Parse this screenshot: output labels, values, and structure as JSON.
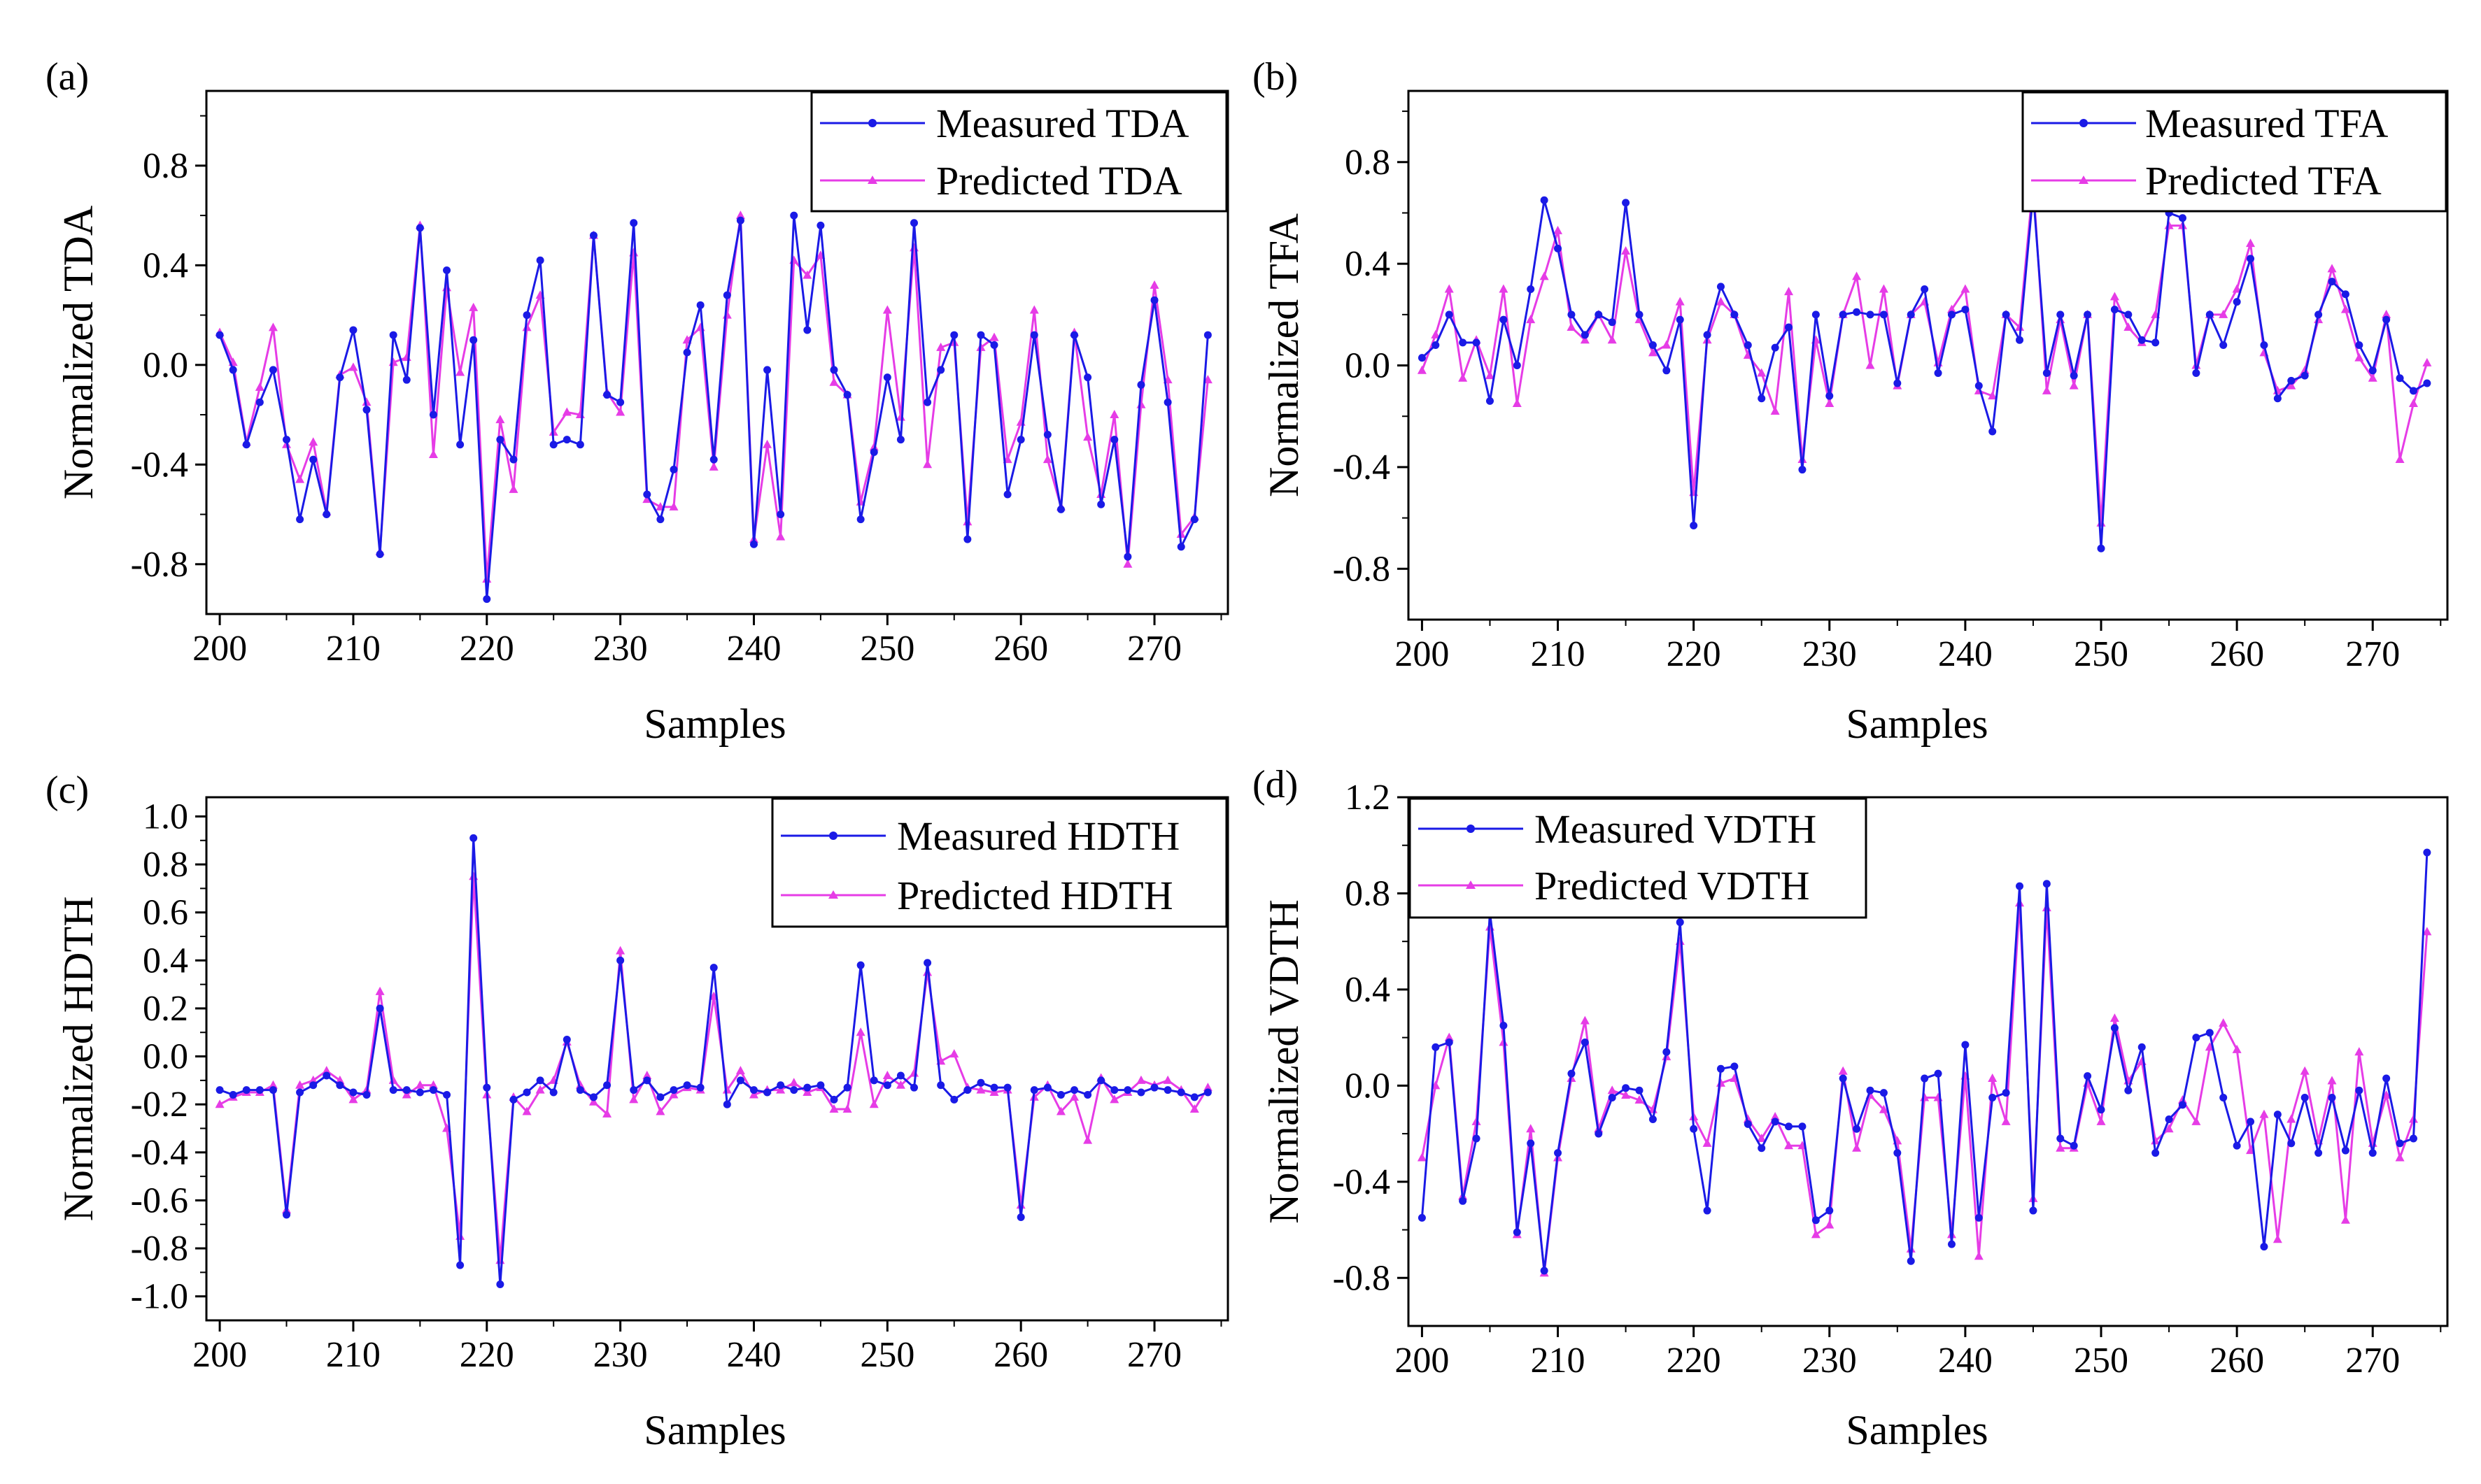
{
  "figure": {
    "series_colors": {
      "measured": "#1a1ae6",
      "predicted": "#e63ce6"
    }
  },
  "chart_data": [
    {
      "type": "line",
      "panel_label": "(a)",
      "title": "",
      "xlabel": "Samples",
      "ylabel": "Normalized TDA",
      "xlim": [
        199,
        275.5
      ],
      "ylim": [
        -1.0,
        1.1
      ],
      "xticks": [
        200,
        210,
        220,
        230,
        240,
        250,
        260,
        270
      ],
      "yticks": [
        -0.8,
        -0.4,
        0.0,
        0.4,
        0.8
      ],
      "ytick_labels": [
        "-0.8",
        "-0.4",
        "0.0",
        "0.4",
        "0.8"
      ],
      "legend": "top-right",
      "x": [
        200,
        201,
        202,
        203,
        204,
        205,
        206,
        207,
        208,
        209,
        210,
        211,
        212,
        213,
        214,
        215,
        216,
        217,
        218,
        219,
        220,
        221,
        222,
        223,
        224,
        225,
        226,
        227,
        228,
        229,
        230,
        231,
        232,
        233,
        234,
        235,
        236,
        237,
        238,
        239,
        240,
        241,
        242,
        243,
        244,
        245,
        246,
        247,
        248,
        249,
        250,
        251,
        252,
        253,
        254,
        255,
        256,
        257,
        258,
        259,
        260,
        261,
        262,
        263,
        264,
        265,
        266,
        267,
        268,
        269,
        270,
        271,
        272,
        273,
        274
      ],
      "series": [
        {
          "name": "Measured TDA",
          "marker": "circle",
          "values": [
            0.12,
            -0.02,
            -0.32,
            -0.15,
            -0.02,
            -0.3,
            -0.62,
            -0.38,
            -0.6,
            -0.05,
            0.14,
            -0.18,
            -0.76,
            0.12,
            -0.06,
            0.55,
            -0.2,
            0.38,
            -0.32,
            0.1,
            -0.94,
            -0.3,
            -0.38,
            0.2,
            0.42,
            -0.32,
            -0.3,
            -0.32,
            0.52,
            -0.12,
            -0.15,
            0.57,
            -0.52,
            -0.62,
            -0.42,
            0.05,
            0.24,
            -0.38,
            0.28,
            0.58,
            -0.72,
            -0.02,
            -0.6,
            0.6,
            0.14,
            0.56,
            -0.02,
            -0.12,
            -0.62,
            -0.35,
            -0.05,
            -0.3,
            0.57,
            -0.15,
            -0.02,
            0.12,
            -0.7,
            0.12,
            0.08,
            -0.52,
            -0.3,
            0.12,
            -0.28,
            -0.58,
            0.12,
            -0.05,
            -0.56,
            -0.3,
            -0.77,
            -0.08,
            0.26,
            -0.15,
            -0.73,
            -0.62,
            0.12
          ]
        },
        {
          "name": "Predicted TDA",
          "marker": "triangle",
          "values": [
            0.13,
            0.01,
            -0.31,
            -0.09,
            0.15,
            -0.32,
            -0.46,
            -0.31,
            -0.59,
            -0.04,
            -0.01,
            -0.15,
            -0.75,
            0.01,
            0.03,
            0.56,
            -0.36,
            0.31,
            -0.03,
            0.23,
            -0.86,
            -0.22,
            -0.5,
            0.15,
            0.28,
            -0.27,
            -0.19,
            -0.2,
            0.52,
            -0.11,
            -0.19,
            0.45,
            -0.54,
            -0.57,
            -0.57,
            0.1,
            0.15,
            -0.41,
            0.2,
            0.6,
            -0.7,
            -0.32,
            -0.69,
            0.42,
            0.36,
            0.44,
            -0.07,
            -0.12,
            -0.55,
            -0.33,
            0.22,
            -0.21,
            0.47,
            -0.4,
            0.07,
            0.09,
            -0.63,
            0.07,
            0.11,
            -0.38,
            -0.23,
            0.22,
            -0.38,
            -0.57,
            0.13,
            -0.29,
            -0.52,
            -0.2,
            -0.8,
            -0.16,
            0.32,
            -0.06,
            -0.68,
            -0.61,
            -0.06
          ]
        }
      ]
    },
    {
      "type": "line",
      "panel_label": "(b)",
      "title": "",
      "xlabel": "Samples",
      "ylabel": "Normalized TFA",
      "xlim": [
        199,
        275.5
      ],
      "ylim": [
        -1.0,
        1.08
      ],
      "xticks": [
        200,
        210,
        220,
        230,
        240,
        250,
        260,
        270
      ],
      "yticks": [
        -0.8,
        -0.4,
        0.0,
        0.4,
        0.8
      ],
      "ytick_labels": [
        "-0.8",
        "-0.4",
        "0.0",
        "0.4",
        "0.8"
      ],
      "legend": "top-right",
      "x": [
        200,
        201,
        202,
        203,
        204,
        205,
        206,
        207,
        208,
        209,
        210,
        211,
        212,
        213,
        214,
        215,
        216,
        217,
        218,
        219,
        220,
        221,
        222,
        223,
        224,
        225,
        226,
        227,
        228,
        229,
        230,
        231,
        232,
        233,
        234,
        235,
        236,
        237,
        238,
        239,
        240,
        241,
        242,
        243,
        244,
        245,
        246,
        247,
        248,
        249,
        250,
        251,
        252,
        253,
        254,
        255,
        256,
        257,
        258,
        259,
        260,
        261,
        262,
        263,
        264,
        265,
        266,
        267,
        268,
        269,
        270,
        271,
        272,
        273,
        274
      ],
      "series": [
        {
          "name": "Measured TFA",
          "marker": "circle",
          "values": [
            0.03,
            0.08,
            0.2,
            0.09,
            0.09,
            -0.14,
            0.18,
            0.0,
            0.3,
            0.65,
            0.46,
            0.2,
            0.12,
            0.2,
            0.17,
            0.64,
            0.2,
            0.08,
            -0.02,
            0.18,
            -0.63,
            0.12,
            0.31,
            0.2,
            0.08,
            -0.13,
            0.07,
            0.15,
            -0.41,
            0.2,
            -0.12,
            0.2,
            0.21,
            0.2,
            0.2,
            -0.07,
            0.2,
            0.3,
            -0.03,
            0.2,
            0.22,
            -0.08,
            -0.26,
            0.2,
            0.1,
            0.68,
            -0.03,
            0.2,
            -0.04,
            0.2,
            -0.72,
            0.22,
            0.2,
            0.1,
            0.09,
            0.6,
            0.58,
            -0.03,
            0.2,
            0.08,
            0.25,
            0.42,
            0.08,
            -0.13,
            -0.06,
            -0.04,
            0.2,
            0.33,
            0.28,
            0.08,
            -0.02,
            0.18,
            -0.05,
            -0.1,
            -0.07
          ]
        },
        {
          "name": "Predicted TFA",
          "marker": "triangle",
          "values": [
            -0.02,
            0.12,
            0.3,
            -0.05,
            0.1,
            -0.04,
            0.3,
            -0.15,
            0.18,
            0.35,
            0.53,
            0.15,
            0.1,
            0.2,
            0.1,
            0.45,
            0.18,
            0.05,
            0.08,
            0.25,
            -0.5,
            0.1,
            0.25,
            0.2,
            0.04,
            -0.03,
            -0.18,
            0.29,
            -0.37,
            0.1,
            -0.15,
            0.2,
            0.35,
            0.0,
            0.3,
            -0.08,
            0.2,
            0.25,
            0.01,
            0.22,
            0.3,
            -0.1,
            -0.12,
            0.2,
            0.15,
            0.72,
            -0.1,
            0.18,
            -0.08,
            0.2,
            -0.62,
            0.27,
            0.15,
            0.09,
            0.2,
            0.55,
            0.55,
            0.0,
            0.2,
            0.2,
            0.3,
            0.48,
            0.05,
            -0.1,
            -0.08,
            -0.02,
            0.18,
            0.38,
            0.22,
            0.03,
            -0.05,
            0.2,
            -0.37,
            -0.15,
            0.01
          ]
        }
      ]
    },
    {
      "type": "line",
      "panel_label": "(c)",
      "title": "",
      "xlabel": "Samples",
      "ylabel": "Normalized HDTH",
      "xlim": [
        199,
        275.5
      ],
      "ylim": [
        -1.1,
        1.08
      ],
      "xticks": [
        200,
        210,
        220,
        230,
        240,
        250,
        260,
        270
      ],
      "yticks": [
        -1.0,
        -0.8,
        -0.6,
        -0.4,
        -0.2,
        0.0,
        0.2,
        0.4,
        0.6,
        0.8,
        1.0
      ],
      "ytick_labels": [
        "-1.0",
        "-0.8",
        "-0.6",
        "-0.4",
        "-0.2",
        "0.0",
        "0.2",
        "0.4",
        "0.6",
        "0.8",
        "1.0"
      ],
      "legend": "top-right",
      "x": [
        200,
        201,
        202,
        203,
        204,
        205,
        206,
        207,
        208,
        209,
        210,
        211,
        212,
        213,
        214,
        215,
        216,
        217,
        218,
        219,
        220,
        221,
        222,
        223,
        224,
        225,
        226,
        227,
        228,
        229,
        230,
        231,
        232,
        233,
        234,
        235,
        236,
        237,
        238,
        239,
        240,
        241,
        242,
        243,
        244,
        245,
        246,
        247,
        248,
        249,
        250,
        251,
        252,
        253,
        254,
        255,
        256,
        257,
        258,
        259,
        260,
        261,
        262,
        263,
        264,
        265,
        266,
        267,
        268,
        269,
        270,
        271,
        272,
        273,
        274
      ],
      "series": [
        {
          "name": "Measured HDTH",
          "marker": "circle",
          "values": [
            -0.14,
            -0.16,
            -0.14,
            -0.14,
            -0.14,
            -0.66,
            -0.15,
            -0.12,
            -0.08,
            -0.12,
            -0.15,
            -0.16,
            0.2,
            -0.14,
            -0.14,
            -0.15,
            -0.14,
            -0.16,
            -0.87,
            0.91,
            -0.13,
            -0.95,
            -0.18,
            -0.15,
            -0.1,
            -0.15,
            0.07,
            -0.14,
            -0.17,
            -0.12,
            0.4,
            -0.14,
            -0.1,
            -0.17,
            -0.14,
            -0.12,
            -0.13,
            0.37,
            -0.2,
            -0.1,
            -0.14,
            -0.15,
            -0.12,
            -0.14,
            -0.13,
            -0.12,
            -0.18,
            -0.13,
            0.38,
            -0.1,
            -0.12,
            -0.08,
            -0.13,
            0.39,
            -0.12,
            -0.18,
            -0.14,
            -0.11,
            -0.13,
            -0.13,
            -0.67,
            -0.14,
            -0.13,
            -0.16,
            -0.14,
            -0.16,
            -0.1,
            -0.14,
            -0.14,
            -0.15,
            -0.13,
            -0.14,
            -0.15,
            -0.17,
            -0.15
          ]
        },
        {
          "name": "Predicted HDTH",
          "marker": "triangle",
          "values": [
            -0.2,
            -0.17,
            -0.15,
            -0.15,
            -0.12,
            -0.64,
            -0.12,
            -0.1,
            -0.06,
            -0.1,
            -0.18,
            -0.14,
            0.27,
            -0.1,
            -0.16,
            -0.12,
            -0.12,
            -0.3,
            -0.75,
            0.75,
            -0.16,
            -0.85,
            -0.17,
            -0.23,
            -0.14,
            -0.1,
            0.06,
            -0.12,
            -0.19,
            -0.24,
            0.44,
            -0.18,
            -0.08,
            -0.23,
            -0.16,
            -0.13,
            -0.14,
            0.25,
            -0.14,
            -0.06,
            -0.16,
            -0.14,
            -0.14,
            -0.11,
            -0.15,
            -0.13,
            -0.22,
            -0.22,
            0.1,
            -0.2,
            -0.08,
            -0.12,
            -0.07,
            0.35,
            -0.02,
            0.01,
            -0.13,
            -0.14,
            -0.15,
            -0.14,
            -0.62,
            -0.17,
            -0.12,
            -0.23,
            -0.17,
            -0.35,
            -0.09,
            -0.18,
            -0.15,
            -0.1,
            -0.12,
            -0.1,
            -0.14,
            -0.22,
            -0.13
          ]
        }
      ]
    },
    {
      "type": "line",
      "panel_label": "(d)",
      "title": "",
      "xlabel": "Samples",
      "ylabel": "Normalized VDTH",
      "xlim": [
        199,
        275.5
      ],
      "ylim": [
        -1.0,
        1.2
      ],
      "xticks": [
        200,
        210,
        220,
        230,
        240,
        250,
        260,
        270
      ],
      "yticks": [
        -0.8,
        -0.4,
        0.0,
        0.4,
        0.8,
        1.2
      ],
      "ytick_labels": [
        "-0.8",
        "-0.4",
        "0.0",
        "0.4",
        "0.8",
        "1.2"
      ],
      "legend": "top-left",
      "x": [
        200,
        201,
        202,
        203,
        204,
        205,
        206,
        207,
        208,
        209,
        210,
        211,
        212,
        213,
        214,
        215,
        216,
        217,
        218,
        219,
        220,
        221,
        222,
        223,
        224,
        225,
        226,
        227,
        228,
        229,
        230,
        231,
        232,
        233,
        234,
        235,
        236,
        237,
        238,
        239,
        240,
        241,
        242,
        243,
        244,
        245,
        246,
        247,
        248,
        249,
        250,
        251,
        252,
        253,
        254,
        255,
        256,
        257,
        258,
        259,
        260,
        261,
        262,
        263,
        264,
        265,
        266,
        267,
        268,
        269,
        270,
        271,
        272,
        273,
        274
      ],
      "series": [
        {
          "name": "Measured VDTH",
          "marker": "circle",
          "values": [
            -0.55,
            0.16,
            0.18,
            -0.48,
            -0.22,
            0.72,
            0.25,
            -0.61,
            -0.24,
            -0.77,
            -0.28,
            0.05,
            0.18,
            -0.2,
            -0.05,
            -0.01,
            -0.02,
            -0.14,
            0.14,
            0.68,
            -0.18,
            -0.52,
            0.07,
            0.08,
            -0.16,
            -0.26,
            -0.15,
            -0.17,
            -0.17,
            -0.56,
            -0.52,
            0.03,
            -0.18,
            -0.02,
            -0.03,
            -0.28,
            -0.73,
            0.03,
            0.05,
            -0.66,
            0.17,
            -0.55,
            -0.05,
            -0.03,
            0.83,
            -0.52,
            0.84,
            -0.22,
            -0.25,
            0.04,
            -0.1,
            0.24,
            -0.02,
            0.16,
            -0.28,
            -0.14,
            -0.08,
            0.2,
            0.22,
            -0.05,
            -0.25,
            -0.15,
            -0.67,
            -0.12,
            -0.24,
            -0.05,
            -0.28,
            -0.05,
            -0.27,
            -0.02,
            -0.28,
            0.03,
            -0.24,
            -0.22,
            0.97
          ]
        },
        {
          "name": "Predicted VDTH",
          "marker": "triangle",
          "values": [
            -0.3,
            0.0,
            0.2,
            -0.46,
            -0.15,
            0.66,
            0.18,
            -0.62,
            -0.18,
            -0.78,
            -0.3,
            0.03,
            0.27,
            -0.18,
            -0.02,
            -0.04,
            -0.06,
            -0.1,
            0.12,
            0.6,
            -0.13,
            -0.24,
            0.01,
            0.03,
            -0.14,
            -0.22,
            -0.13,
            -0.25,
            -0.25,
            -0.62,
            -0.58,
            0.06,
            -0.26,
            -0.04,
            -0.1,
            -0.23,
            -0.68,
            -0.05,
            -0.05,
            -0.62,
            0.04,
            -0.71,
            0.03,
            -0.15,
            0.76,
            -0.47,
            0.74,
            -0.26,
            -0.26,
            0.01,
            -0.15,
            0.28,
            0.02,
            0.1,
            -0.23,
            -0.18,
            -0.06,
            -0.15,
            0.16,
            0.26,
            0.15,
            -0.27,
            -0.12,
            -0.64,
            -0.14,
            0.06,
            -0.23,
            0.02,
            -0.56,
            0.14,
            -0.24,
            -0.04,
            -0.3,
            -0.14,
            0.64
          ]
        }
      ]
    }
  ]
}
